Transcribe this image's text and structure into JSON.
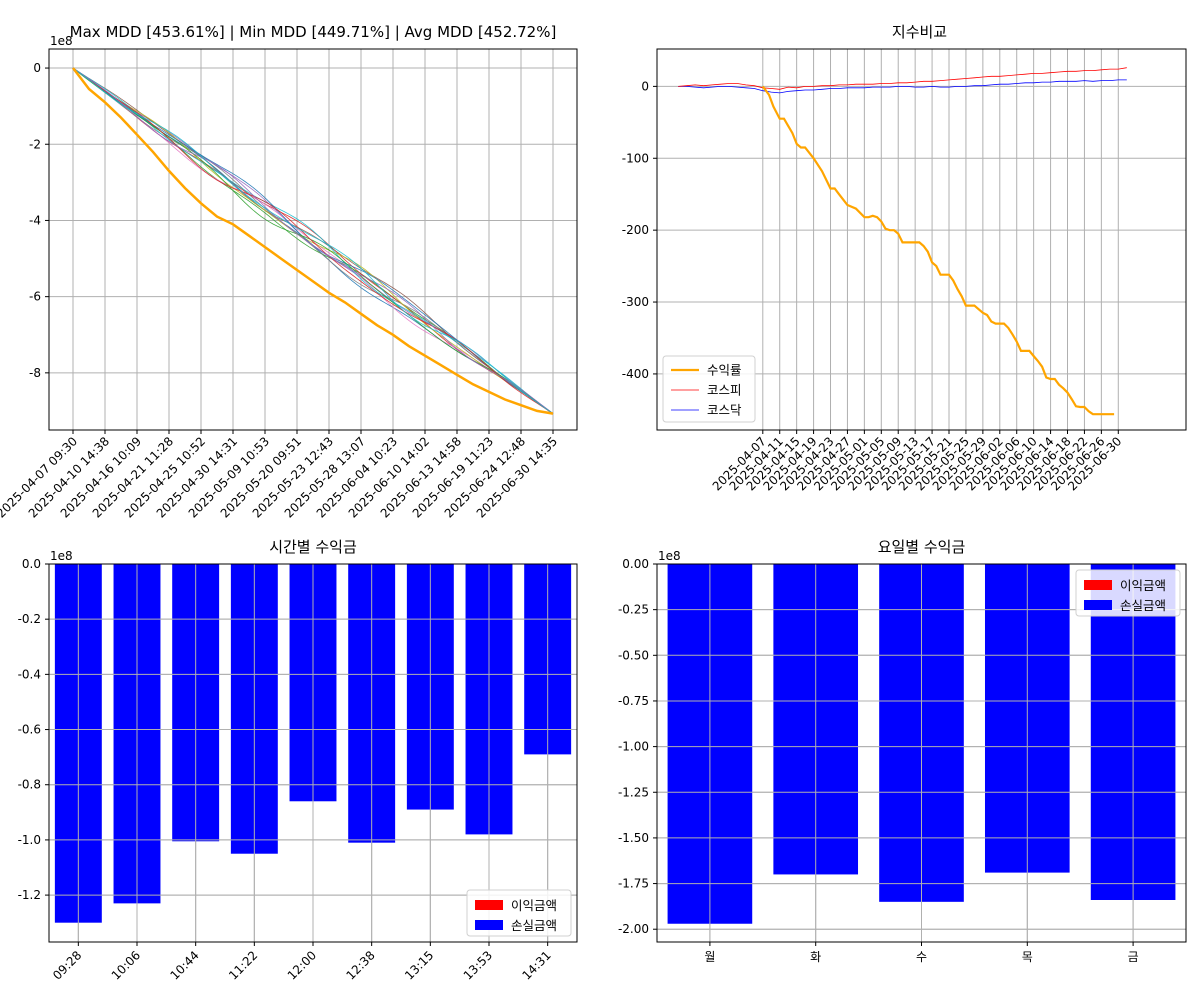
{
  "colors": {
    "profit": "#ff0000",
    "loss": "#0000ff",
    "return": "#ffa500",
    "kospi": "#ff0000",
    "kosdaq": "#0000ff",
    "grid": "#b0b0b0"
  },
  "chart_data": [
    {
      "id": "mdd",
      "type": "line",
      "title": "Max MDD [453.61%] | Min MDD [449.71%] | Avg MDD [452.72%]",
      "offset_label": "1e8",
      "xlabels": [
        "2025-04-07 09:30",
        "2025-04-10 14:38",
        "2025-04-16 10:09",
        "2025-04-21 11:28",
        "2025-04-25 10:52",
        "2025-04-30 14:31",
        "2025-05-09 10:53",
        "2025-05-20 09:51",
        "2025-05-23 12:43",
        "2025-05-28 13:07",
        "2025-06-04 10:23",
        "2025-06-10 14:02",
        "2025-06-13 14:58",
        "2025-06-19 11:23",
        "2025-06-24 12:48",
        "2025-06-30 14:35"
      ],
      "ylim": [
        -9.5,
        0.5
      ],
      "yticks": [
        0,
        -2,
        -4,
        -6,
        -8
      ],
      "ytick_labels": [
        "0",
        "-2",
        "-4",
        "-6",
        "-8"
      ],
      "grid": true,
      "main_series": {
        "name": "",
        "color": "#ffa500",
        "x": [
          0,
          0.5,
          1.0,
          1.5,
          2.0,
          2.5,
          3.0,
          3.5,
          4.0,
          4.5,
          5.0,
          5.5,
          6.0,
          6.5,
          7.0,
          7.5,
          8.0,
          8.5,
          9.0,
          9.5,
          10.0,
          10.5,
          11.0,
          11.5,
          12.0,
          12.5,
          13.0,
          13.5,
          14.0,
          14.5,
          15.0
        ],
        "values": [
          0,
          -0.55,
          -0.9,
          -1.3,
          -1.75,
          -2.2,
          -2.7,
          -3.15,
          -3.55,
          -3.9,
          -4.1,
          -4.4,
          -4.7,
          -5.0,
          -5.3,
          -5.6,
          -5.9,
          -6.15,
          -6.45,
          -6.75,
          -7.0,
          -7.3,
          -7.55,
          -7.8,
          -8.05,
          -8.3,
          -8.5,
          -8.7,
          -8.85,
          -9.0,
          -9.07
        ]
      },
      "band_series_count": 14,
      "band_series_colors": [
        "#1f77b4",
        "#2ca02c",
        "#d62728",
        "#9467bd",
        "#8c564b",
        "#e377c2",
        "#7f7f7f",
        "#bcbd22",
        "#17becf",
        "#1f77b4",
        "#2ca02c",
        "#d62728",
        "#9467bd",
        "#17becf"
      ],
      "end_value": -9.07
    },
    {
      "id": "index",
      "type": "line",
      "title": "지수비교",
      "xlabels": [
        "2025-04-07",
        "2025-04-11",
        "2025-04-15",
        "2025-04-19",
        "2025-04-23",
        "2025-04-27",
        "2025-05-01",
        "2025-05-05",
        "2025-05-09",
        "2025-05-13",
        "2025-05-17",
        "2025-05-21",
        "2025-05-25",
        "2025-05-29",
        "2025-06-02",
        "2025-06-06",
        "2025-06-10",
        "2025-06-14",
        "2025-06-18",
        "2025-06-22",
        "2025-06-26",
        "2025-06-30"
      ],
      "ylim": [
        -478,
        52
      ],
      "yticks": [
        0,
        -100,
        -200,
        -300,
        -400
      ],
      "ytick_labels": [
        "0",
        "-100",
        "-200",
        "-300",
        "-400"
      ],
      "grid": true,
      "legend_position": "lower-left",
      "series": [
        {
          "name": "수익률",
          "color": "#ffa500",
          "x": [
            0,
            1.5,
            2.5,
            4,
            5,
            6,
            7,
            8,
            9,
            10,
            12,
            14,
            16,
            17,
            18,
            20,
            22,
            24,
            25,
            26,
            27,
            28,
            29,
            30,
            31,
            32,
            33,
            34,
            35,
            36,
            37,
            38,
            39,
            40,
            41,
            42,
            43,
            44,
            45,
            46,
            47,
            48,
            49,
            50,
            51,
            52,
            53,
            54,
            55,
            56,
            57,
            58,
            59,
            60,
            61,
            62,
            63,
            64,
            65,
            66,
            67,
            68,
            69,
            70,
            71,
            72,
            73,
            74,
            75,
            76,
            77,
            78,
            79,
            80,
            81,
            82,
            83
          ],
          "values": [
            0,
            -12,
            -28,
            -45,
            -45,
            -55,
            -65,
            -80,
            -85,
            -85,
            -100,
            -118,
            -142,
            -142,
            -150,
            -165,
            -170,
            -182,
            -182,
            -180,
            -182,
            -188,
            -198,
            -200,
            -200,
            -205,
            -217,
            -217,
            -217,
            -217,
            -217,
            -222,
            -230,
            -245,
            -250,
            -262,
            -262,
            -262,
            -270,
            -282,
            -292,
            -305,
            -305,
            -305,
            -310,
            -315,
            -318,
            -327,
            -330,
            -330,
            -330,
            -336,
            -345,
            -355,
            -368,
            -368,
            -368,
            -375,
            -382,
            -390,
            -405,
            -407,
            -407,
            -415,
            -420,
            -426,
            -435,
            -445,
            -446,
            -446,
            -452,
            -456,
            -456,
            -456,
            -456,
            -456,
            -456
          ]
        },
        {
          "name": "코스피",
          "color": "#ff0000",
          "x": [
            -20,
            -18,
            -16,
            -14,
            -12,
            -10,
            -8,
            -6,
            -4,
            -2,
            0,
            2,
            4,
            6,
            8,
            10,
            12,
            14,
            16,
            18,
            20,
            22,
            24,
            26,
            28,
            30,
            32,
            34,
            36,
            38,
            40,
            42,
            44,
            46,
            48,
            50,
            52,
            54,
            56,
            58,
            60,
            62,
            64,
            66,
            68,
            70,
            72,
            74,
            76,
            78,
            80,
            82,
            84,
            86
          ],
          "values": [
            0,
            1,
            2,
            1,
            2,
            3,
            4,
            4,
            2,
            1,
            -2,
            -3,
            -4,
            -1,
            -2,
            0,
            0,
            1,
            1,
            2,
            2,
            3,
            3,
            3,
            4,
            4,
            5,
            5,
            6,
            7,
            7,
            8,
            9,
            10,
            11,
            12,
            13,
            14,
            14,
            15,
            16,
            17,
            18,
            18,
            19,
            20,
            21,
            21,
            22,
            22,
            23,
            24,
            24,
            26
          ]
        },
        {
          "name": "코스닥",
          "color": "#0000ff",
          "x": [
            -20,
            -18,
            -16,
            -14,
            -12,
            -10,
            -8,
            -6,
            -4,
            -2,
            0,
            2,
            4,
            6,
            8,
            10,
            12,
            14,
            16,
            18,
            20,
            22,
            24,
            26,
            28,
            30,
            32,
            34,
            36,
            38,
            40,
            42,
            44,
            46,
            48,
            50,
            52,
            54,
            56,
            58,
            60,
            62,
            64,
            66,
            68,
            70,
            72,
            74,
            76,
            78,
            80,
            82,
            84,
            86
          ],
          "values": [
            0,
            0,
            -1,
            -2,
            -1,
            0,
            0,
            -1,
            -2,
            -3,
            -6,
            -8,
            -9,
            -7,
            -6,
            -5,
            -5,
            -4,
            -3,
            -3,
            -2,
            -2,
            -2,
            -1,
            -1,
            -1,
            0,
            0,
            -1,
            -1,
            0,
            -1,
            -1,
            0,
            0,
            1,
            1,
            2,
            3,
            3,
            4,
            5,
            5,
            6,
            6,
            7,
            7,
            7,
            8,
            7,
            8,
            8,
            9,
            9
          ]
        }
      ],
      "xlim": [
        -25,
        100
      ],
      "vlines_x": [
        0,
        4,
        8,
        12,
        16,
        20,
        24,
        28,
        32,
        36,
        40,
        44,
        48,
        52,
        56,
        60,
        64,
        68,
        72,
        76,
        80,
        84
      ]
    },
    {
      "id": "hourly",
      "type": "bar",
      "title": "시간별 수익금",
      "offset_label": "1e8",
      "categories": [
        "09:28",
        "10:06",
        "10:44",
        "11:22",
        "12:00",
        "12:38",
        "13:15",
        "13:53",
        "14:31"
      ],
      "series": [
        {
          "name": "이익금액",
          "color": "#ff0000",
          "values": [
            0,
            0,
            0,
            0,
            0,
            0,
            0,
            0,
            0
          ]
        },
        {
          "name": "손실금액",
          "color": "#0000ff",
          "values": [
            -1.3,
            -1.23,
            -1.005,
            -1.05,
            -0.86,
            -1.01,
            -0.89,
            -0.98,
            -0.69
          ]
        }
      ],
      "ylim": [
        -1.37,
        0
      ],
      "yticks": [
        0,
        -0.2,
        -0.4,
        -0.6,
        -0.8,
        -1.0,
        -1.2
      ],
      "ytick_labels": [
        "0.0",
        "-0.2",
        "-0.4",
        "-0.6",
        "-0.8",
        "-1.0",
        "-1.2"
      ],
      "grid": true,
      "legend_position": "lower-right"
    },
    {
      "id": "weekday",
      "type": "bar",
      "title": "요일별 수익금",
      "offset_label": "1e8",
      "categories": [
        "월",
        "화",
        "수",
        "목",
        "금"
      ],
      "series": [
        {
          "name": "이익금액",
          "color": "#ff0000",
          "values": [
            0,
            0,
            0,
            0,
            0
          ]
        },
        {
          "name": "손실금액",
          "color": "#0000ff",
          "values": [
            -1.97,
            -1.7,
            -1.85,
            -1.69,
            -1.84
          ]
        }
      ],
      "ylim": [
        -2.07,
        0
      ],
      "yticks": [
        0,
        -0.25,
        -0.5,
        -0.75,
        -1.0,
        -1.25,
        -1.5,
        -1.75,
        -2.0
      ],
      "ytick_labels": [
        "0.00",
        "-0.25",
        "-0.50",
        "-0.75",
        "-1.00",
        "-1.25",
        "-1.50",
        "-1.75",
        "-2.00"
      ],
      "grid": true,
      "legend_position": "upper-right"
    }
  ]
}
